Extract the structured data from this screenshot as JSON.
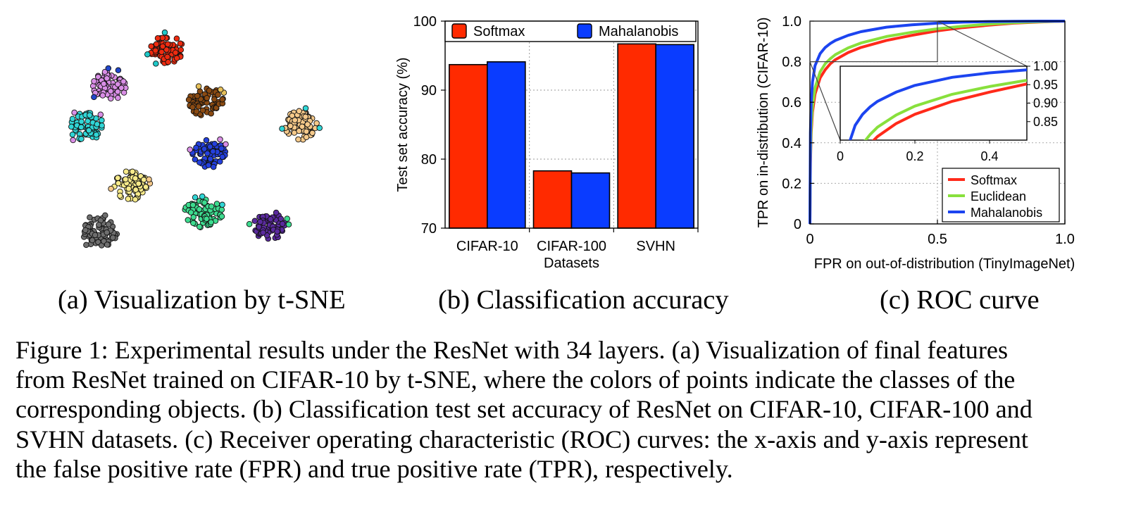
{
  "panel_a": {
    "caption": "(a)  Visualization by t-SNE",
    "clusters": [
      {
        "color": "#ee2b10",
        "stray": "#1fc8c8"
      },
      {
        "color": "#d98ee6",
        "stray": "#2247cc"
      },
      {
        "color": "#8a4a12",
        "stray": "#e6c05a"
      },
      {
        "color": "#30d6d6",
        "stray": "#d98ee6"
      },
      {
        "color": "#f5c98a",
        "stray": "#30d6d6"
      },
      {
        "color": "#2440dd",
        "stray": "#d98ee6"
      },
      {
        "color": "#f7ea8a",
        "stray": "#f5c98a"
      },
      {
        "color": "#3ddc8f",
        "stray": "#30d6d6"
      },
      {
        "color": "#5a2a9e",
        "stray": "#3ddc8f"
      },
      {
        "color": "#6e6e6e",
        "stray": "#6e6e6e"
      }
    ]
  },
  "panel_b": {
    "caption": "(b)  Classification accuracy"
  },
  "panel_c": {
    "caption": "(c)  ROC curve"
  },
  "chart_data": [
    {
      "type": "bar",
      "title": "",
      "categories": [
        "CIFAR-10",
        "CIFAR-100",
        "SVHN"
      ],
      "xlabel": "Datasets",
      "ylabel": "Test set accuracy (%)",
      "ylim": [
        70,
        100
      ],
      "yticks": [
        "70",
        "80",
        "90",
        "100"
      ],
      "legend_position": "top",
      "series": [
        {
          "name": "Softmax",
          "color": "#ff2a00",
          "values": [
            93.7,
            78.3,
            96.7
          ]
        },
        {
          "name": "Mahalanobis",
          "color": "#0a3cff",
          "values": [
            94.1,
            78.0,
            96.6
          ]
        }
      ]
    },
    {
      "type": "line",
      "title": "",
      "xlabel": "FPR on out-of-distribution (TinyImageNet)",
      "ylabel": "TPR on in-distribution (CIFAR-10)",
      "xlim": [
        0,
        1
      ],
      "ylim": [
        0,
        1
      ],
      "xticks": [
        "0",
        "0.5",
        "1.0"
      ],
      "yticks": [
        "0",
        "0.2",
        "0.4",
        "0.6",
        "0.8",
        "1.0"
      ],
      "legend_position": "bottom-right",
      "series": [
        {
          "name": "Softmax",
          "color": "#ff2a1a",
          "x": [
            0,
            0.002,
            0.005,
            0.01,
            0.02,
            0.04,
            0.06,
            0.08,
            0.1,
            0.15,
            0.2,
            0.3,
            0.4,
            0.5,
            0.6,
            0.7,
            0.8,
            0.9,
            1.0
          ],
          "y": [
            0,
            0.3,
            0.45,
            0.55,
            0.64,
            0.72,
            0.76,
            0.79,
            0.81,
            0.845,
            0.87,
            0.905,
            0.93,
            0.952,
            0.968,
            0.98,
            0.99,
            0.996,
            1.0
          ]
        },
        {
          "name": "Euclidean",
          "color": "#88e03c",
          "x": [
            0,
            0.002,
            0.005,
            0.01,
            0.02,
            0.04,
            0.06,
            0.08,
            0.1,
            0.15,
            0.2,
            0.3,
            0.4,
            0.5,
            0.6,
            0.7,
            0.8,
            0.9,
            1.0
          ],
          "y": [
            0,
            0.33,
            0.48,
            0.58,
            0.67,
            0.75,
            0.79,
            0.815,
            0.835,
            0.868,
            0.892,
            0.924,
            0.945,
            0.962,
            0.975,
            0.985,
            0.992,
            0.997,
            1.0
          ]
        },
        {
          "name": "Mahalanobis",
          "color": "#1c44f0",
          "x": [
            0,
            0.002,
            0.005,
            0.01,
            0.02,
            0.04,
            0.06,
            0.08,
            0.1,
            0.15,
            0.2,
            0.3,
            0.4,
            0.5,
            0.6,
            0.7,
            0.8,
            0.9,
            1.0
          ],
          "y": [
            0,
            0.45,
            0.6,
            0.7,
            0.78,
            0.84,
            0.87,
            0.89,
            0.905,
            0.93,
            0.948,
            0.97,
            0.982,
            0.99,
            0.995,
            0.998,
            0.999,
            1.0,
            1.0
          ]
        }
      ],
      "inset": {
        "xlim": [
          0,
          0.5
        ],
        "ylim": [
          0.8,
          1.0
        ],
        "xticks": [
          "0",
          "0.2",
          "0.4"
        ],
        "yticks": [
          "0.85",
          "0.90",
          "0.95",
          "1.00"
        ]
      }
    }
  ],
  "caption": {
    "lines": [
      "Figure 1:   Experimental results under the ResNet with 34 layers. (a) Visualization of final features",
      "from ResNet trained on CIFAR-10 by t-SNE, where the colors of points indicate the classes of the",
      "corresponding objects. (b) Classification test set accuracy of ResNet on CIFAR-10, CIFAR-100 and",
      "SVHN datasets. (c) Receiver operating characteristic (ROC) curves: the x-axis and y-axis represent",
      "the false positive rate (FPR) and true positive rate (TPR), respectively."
    ]
  }
}
